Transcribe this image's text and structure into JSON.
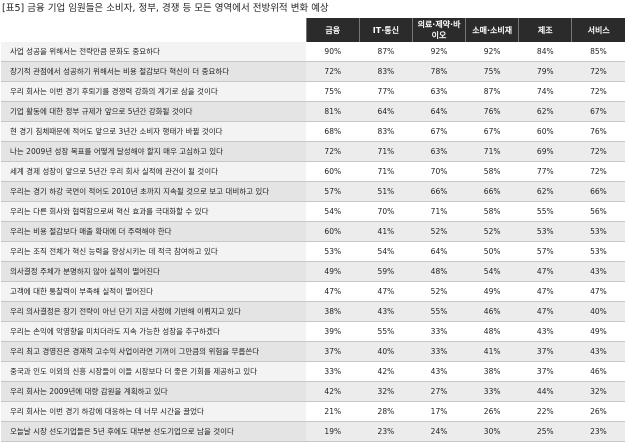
{
  "title": "[표5] 금융 기업 임원들은 소비자, 정부, 경쟁 등 모든 영역에서 전방위적 변화 예상",
  "columns": [
    "금융",
    "IT·통신",
    "의료·제약·바이오",
    "소매·소비재",
    "제조",
    "서비스"
  ],
  "rows": [
    {
      "label": "사업 성공을 위해서는 전략만큼 문화도 중요하다",
      "values": [
        "90%",
        "87%",
        "92%",
        "92%",
        "84%",
        "85%"
      ]
    },
    {
      "label": "장기적 관점에서 성공하기 위해서는 비용 절감보다 혁신이 더 중요하다",
      "values": [
        "72%",
        "83%",
        "78%",
        "75%",
        "79%",
        "72%"
      ]
    },
    {
      "label": "우리 회사는 이번 경기 후퇴기를 경쟁력 강화의 계기로 삼을 것이다",
      "values": [
        "75%",
        "77%",
        "63%",
        "87%",
        "74%",
        "72%"
      ]
    },
    {
      "label": "기업 활동에 대한 정부 규제가 앞으로 5년간 강화될 것이다",
      "values": [
        "81%",
        "64%",
        "64%",
        "76%",
        "62%",
        "67%"
      ]
    },
    {
      "label": "현 경기 침체때문에 적어도 앞으로 3년간 소비자 행태가 바뀔 것이다",
      "values": [
        "68%",
        "83%",
        "67%",
        "67%",
        "60%",
        "76%"
      ]
    },
    {
      "label": "나는 2009년 성장 목표를 어떻게 달성해야 할지 매우 고심하고 있다",
      "values": [
        "72%",
        "71%",
        "63%",
        "71%",
        "69%",
        "72%"
      ]
    },
    {
      "label": "세계 경제 성장이 앞으로 5년간 우리 회사 실적에 관건이 될 것이다",
      "values": [
        "60%",
        "71%",
        "70%",
        "58%",
        "77%",
        "72%"
      ]
    },
    {
      "label": "우리는 경기 하강 국면이 적어도 2010년 초까지 지속될 것으로 보고 대비하고 있다",
      "values": [
        "57%",
        "51%",
        "66%",
        "66%",
        "62%",
        "66%"
      ]
    },
    {
      "label": "우리는 다른 회사와 협력함으로써 혁신 효과를 극대화할 수 있다",
      "values": [
        "54%",
        "70%",
        "71%",
        "58%",
        "55%",
        "56%"
      ]
    },
    {
      "label": "우리는 비용 절감보다 매출 확대에 더 주력해야 한다",
      "values": [
        "60%",
        "41%",
        "52%",
        "52%",
        "53%",
        "53%"
      ]
    },
    {
      "label": "우리는 조직 전체가 혁신 능력을 향상시키는 데 적극 참여하고 있다",
      "values": [
        "53%",
        "54%",
        "64%",
        "50%",
        "57%",
        "53%"
      ]
    },
    {
      "label": "의사결정 주체가 분명하지 않아 실적이 떨어진다",
      "values": [
        "49%",
        "59%",
        "48%",
        "54%",
        "47%",
        "43%"
      ]
    },
    {
      "label": "고객에 대한 통찰력이 부족해 실적이 떨어진다",
      "values": [
        "47%",
        "47%",
        "52%",
        "49%",
        "47%",
        "47%"
      ]
    },
    {
      "label": "우리 의사결정은 장기 전략이 아닌 단기 지금 사정에 기반해 이뤄지고 있다",
      "values": [
        "38%",
        "43%",
        "55%",
        "46%",
        "47%",
        "40%"
      ]
    },
    {
      "label": "우리는 손익에 악영향을 미치더라도 지속 가능한 성장을 추구하겠다",
      "values": [
        "39%",
        "55%",
        "33%",
        "48%",
        "43%",
        "49%"
      ]
    },
    {
      "label": "우리 최고 경영진은 경재적 고수익 사업이라면 기꺼이 그만큼의 위험을 무릅쓴다",
      "values": [
        "37%",
        "40%",
        "33%",
        "41%",
        "37%",
        "43%"
      ]
    },
    {
      "label": "중국과 인도 이외의 신흥 시장들이 이들 시장보다 더 좋은 기회를 제공하고 있다",
      "values": [
        "33%",
        "42%",
        "43%",
        "38%",
        "37%",
        "46%"
      ]
    },
    {
      "label": "우리 회사는 2009년에 대량 감원을 계획하고 있다",
      "values": [
        "42%",
        "32%",
        "27%",
        "33%",
        "44%",
        "32%"
      ]
    },
    {
      "label": "우리 회사는 이번 경기 하강에 대응하는 데 너무 시간을 끌었다",
      "values": [
        "21%",
        "28%",
        "17%",
        "26%",
        "22%",
        "26%"
      ]
    },
    {
      "label": "오늘날 시장 선도기업들은 5년 후에도 대부분 선도기업으로 남을 것이다",
      "values": [
        "19%",
        "23%",
        "24%",
        "30%",
        "25%",
        "23%"
      ]
    }
  ],
  "colors": {
    "header_bg": "#2b2b2b",
    "row_alt": "#ececec",
    "first_col": "#f3f3f3"
  }
}
